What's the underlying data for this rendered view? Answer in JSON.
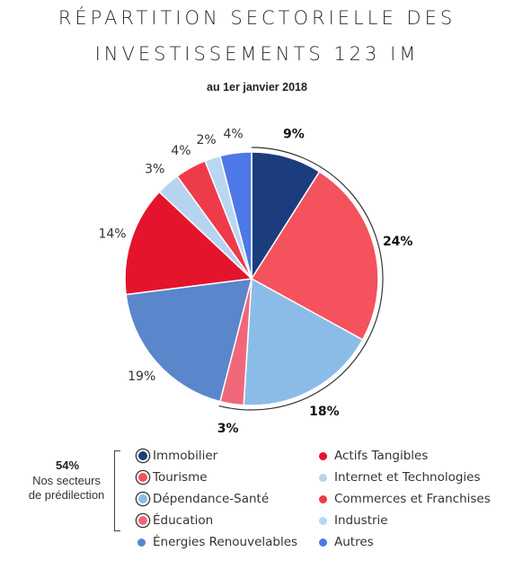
{
  "title_line1": "RÉPARTITION SECTORIELLE DES",
  "title_line2": "INVESTISSEMENTS 123 IM",
  "subtitle": "au 1er janvier 2018",
  "chart_data": {
    "type": "pie",
    "title": "RÉPARTITION SECTORIELLE DES INVESTISSEMENTS 123 IM",
    "subtitle": "au 1er janvier 2018",
    "slices": [
      {
        "name": "Immobilier",
        "value": 9,
        "label": "9%",
        "color": "#1b3d7e",
        "favored": true
      },
      {
        "name": "Tourisme",
        "value": 24,
        "label": "24%",
        "color": "#f4525c",
        "favored": true
      },
      {
        "name": "Dépendance-Santé",
        "value": 18,
        "label": "18%",
        "color": "#8bbce8",
        "favored": true
      },
      {
        "name": "Éducation",
        "value": 3,
        "label": "3%",
        "color": "#f0677a",
        "favored": true
      },
      {
        "name": "Énergies Renouvelables",
        "value": 19,
        "label": "19%",
        "color": "#5a86cc",
        "favored": false
      },
      {
        "name": "Actifs Tangibles",
        "value": 14,
        "label": "14%",
        "color": "#e4142c",
        "favored": false
      },
      {
        "name": "Internet et Technologies",
        "value": 3,
        "label": "3%",
        "color": "#b6d4f0",
        "favored": false
      },
      {
        "name": "Commerces et Franchises",
        "value": 4,
        "label": "4%",
        "color": "#ee3b4a",
        "favored": false
      },
      {
        "name": "Industrie",
        "value": 2,
        "label": "2%",
        "color": "#b9d7f2",
        "favored": false
      },
      {
        "name": "Autres",
        "value": 4,
        "label": "4%",
        "color": "#4d78e8",
        "favored": false
      }
    ],
    "favored_total_label": "54%",
    "favored_text": "Nos secteurs de prédilection"
  },
  "legend": {
    "pct": "54%",
    "text_line1": "Nos secteurs",
    "text_line2": "de prédilection",
    "left_items": [
      {
        "label": "Immobilier",
        "color": "#1b3d7e"
      },
      {
        "label": "Tourisme",
        "color": "#f4525c"
      },
      {
        "label": "Dépendance-Santé",
        "color": "#8bbce8"
      },
      {
        "label": "Éducation",
        "color": "#f0677a"
      },
      {
        "label": "Énergies Renouvelables",
        "color": "#5a86cc"
      }
    ],
    "right_items": [
      {
        "label": "Actifs Tangibles",
        "color": "#e4142c"
      },
      {
        "label": "Internet et Technologies",
        "color": "#b6d4f0"
      },
      {
        "label": "Commerces et Franchises",
        "color": "#ee3b4a"
      },
      {
        "label": "Industrie",
        "color": "#b9d7f2"
      },
      {
        "label": "Autres",
        "color": "#4d78e8"
      }
    ]
  }
}
